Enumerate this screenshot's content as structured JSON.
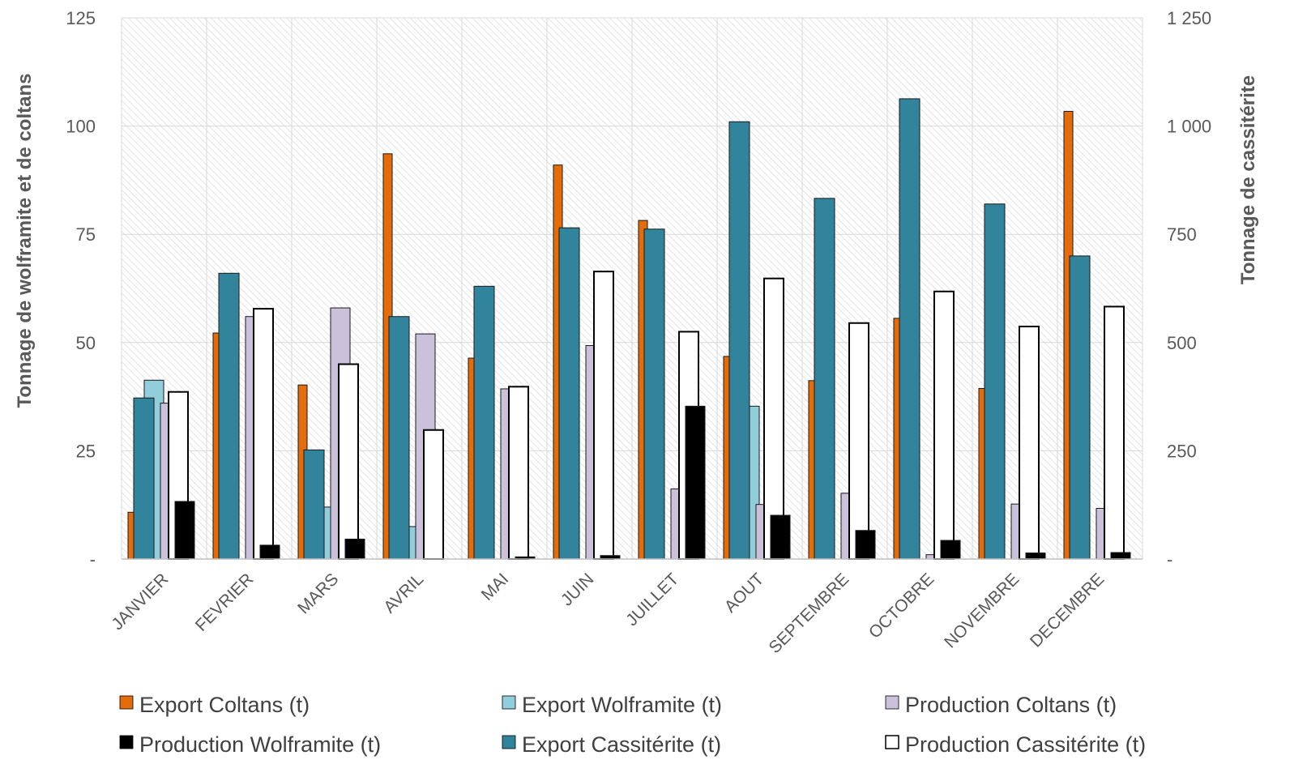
{
  "chart_data": {
    "type": "bar",
    "categories": [
      "JANVIER",
      "FEVRIER",
      "MARS",
      "AVRIL",
      "MAI",
      "JUIN",
      "JUILLET",
      "AOUT",
      "SEPTEMBRE",
      "OCTOBRE",
      "NOVEMBRE",
      "DECEMBRE"
    ],
    "ylabel": "Tonnage de wolframite et de coltans",
    "y2label": "Tonnage de cassitérite",
    "ylim": [
      0,
      125
    ],
    "y2lim": [
      0,
      1250
    ],
    "yticks": [
      "-",
      "25",
      "50",
      "75",
      "100",
      "125"
    ],
    "y2ticks": [
      "-",
      "250",
      "500",
      "750",
      "1 000",
      "1 250"
    ],
    "grid": true,
    "legend_position": "bottom",
    "series": [
      {
        "name": "Export Coltans (t)",
        "axis": "left",
        "color": "#E46C0A",
        "values": [
          10.8,
          52.2,
          40.2,
          93.6,
          46.4,
          91.0,
          78.2,
          46.8,
          41.2,
          55.6,
          39.4,
          103.4
        ]
      },
      {
        "name": "Export Wolframite (t)",
        "axis": "left",
        "color": "#92CDDC",
        "values": [
          41.3,
          0,
          12.0,
          7.5,
          0,
          0,
          0,
          35.3,
          0,
          0,
          0,
          0
        ]
      },
      {
        "name": "Export Cassitérite (t)",
        "axis": "right",
        "color": "#31849B",
        "values": [
          372,
          660,
          252,
          560,
          630,
          765,
          762,
          1010,
          833,
          1063,
          820,
          700
        ]
      },
      {
        "name": "Production Coltans (t)",
        "axis": "left",
        "color": "#CCC1DA",
        "values": [
          36.0,
          56.0,
          58.0,
          52.0,
          39.3,
          49.3,
          16.2,
          12.6,
          15.2,
          1.0,
          12.7,
          11.7
        ]
      },
      {
        "name": "Production Cassitérite (t)",
        "axis": "right",
        "color": "#FFFFFF",
        "values": [
          386,
          578,
          450,
          298,
          398,
          664,
          525,
          648,
          545,
          618,
          537,
          583
        ]
      },
      {
        "name": "Production Wolframite (t)",
        "axis": "left",
        "color": "#000000",
        "values": [
          13.3,
          3.2,
          4.6,
          0,
          0.5,
          0.8,
          35.3,
          10.1,
          6.6,
          4.3,
          1.4,
          1.5
        ]
      }
    ]
  }
}
